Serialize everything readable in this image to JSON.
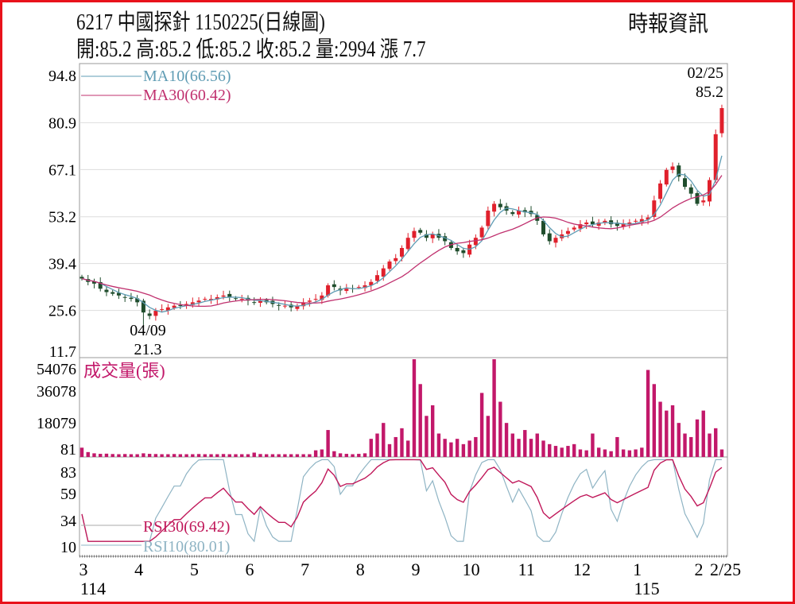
{
  "header": {
    "title": "6217  中國探針 1150225(日線圖)",
    "ohlc": "開:85.2 高:85.2 低:85.2 收:85.2 量:2994 漲 7.7",
    "brand": "時報資訊"
  },
  "colors": {
    "frame": "#e8121b",
    "up": "#e0202c",
    "down": "#1f4d2c",
    "ma10": "#5f9cb4",
    "ma30": "#c0306e",
    "volume": "#c2186a",
    "rsi10": "#8fb4c4",
    "rsi30": "#c0185a"
  },
  "chart_data": [
    {
      "type": "candlestick",
      "title": "price",
      "y_ticks": [
        "94.8",
        "80.9",
        "67.1",
        "53.2",
        "39.4",
        "25.6",
        "11.7"
      ],
      "ylim": [
        11.7,
        94.8
      ],
      "legend": [
        {
          "name": "MA10(66.56)",
          "period": 10
        },
        {
          "name": "MA30(60.42)",
          "period": 30
        }
      ],
      "annotations": [
        {
          "date": "04/09",
          "value": "21.3",
          "index": 10
        },
        {
          "date": "02/25",
          "value": "85.2",
          "index": 104
        }
      ],
      "close": [
        35,
        34,
        33.5,
        32,
        31,
        30.5,
        30,
        29.5,
        29,
        28,
        25,
        24,
        25.5,
        26,
        26.5,
        27,
        27,
        27.5,
        28,
        28.5,
        29,
        29,
        29.5,
        30,
        29.5,
        29,
        29,
        28.5,
        28,
        28.5,
        28,
        27.5,
        27,
        27,
        26.5,
        27,
        28,
        28.5,
        29,
        30,
        33,
        32.5,
        31.5,
        32,
        32,
        32.5,
        33,
        34,
        36,
        38,
        40,
        41,
        44,
        47,
        49,
        48.5,
        47,
        48,
        47,
        46,
        44,
        43,
        42.5,
        45,
        47,
        50,
        55,
        57,
        56,
        55,
        54,
        55,
        54.5,
        54,
        52,
        48,
        46,
        47,
        48,
        49,
        50,
        51,
        51.5,
        51,
        51.5,
        52,
        51,
        50.5,
        51,
        51.5,
        52,
        52.5,
        53,
        58,
        63,
        67,
        68,
        65,
        62,
        60,
        57,
        58,
        64,
        77.5,
        85.2
      ],
      "low_point": 21.3
    },
    {
      "type": "bar",
      "title": "成交量(張)",
      "y_ticks": [
        "54076",
        "36078",
        "18079",
        "81"
      ],
      "ylim": [
        81,
        54076
      ],
      "values": [
        4000,
        1500,
        800,
        500,
        600,
        400,
        300,
        400,
        300,
        300,
        800,
        500,
        400,
        300,
        300,
        400,
        300,
        300,
        300,
        400,
        300,
        300,
        300,
        400,
        300,
        300,
        300,
        300,
        1200,
        400,
        300,
        300,
        300,
        300,
        300,
        300,
        300,
        300,
        2500,
        3000,
        14000,
        2000,
        800,
        500,
        300,
        500,
        800,
        9000,
        12000,
        18000,
        6000,
        10000,
        15000,
        8000,
        54076,
        40000,
        22000,
        28000,
        12000,
        9000,
        7000,
        9000,
        6000,
        8000,
        10000,
        35000,
        22000,
        54076,
        30000,
        18000,
        12000,
        9000,
        14000,
        9000,
        12000,
        8000,
        6000,
        5000,
        4000,
        5000,
        6000,
        3000,
        2500,
        12000,
        4000,
        3000,
        2000,
        10000,
        3000,
        2500,
        3000,
        4000,
        48000,
        40000,
        30000,
        25000,
        28000,
        18000,
        12000,
        10000,
        20000,
        25000,
        12000,
        15000,
        2994
      ]
    },
    {
      "type": "line",
      "title": "RSI",
      "y_ticks": [
        "83",
        "59",
        "34",
        "10"
      ],
      "ylim": [
        10,
        83
      ],
      "legend": [
        {
          "name": "RSI30(69.42)"
        },
        {
          "name": "RSI10(80.01)"
        }
      ]
    }
  ],
  "x_axis": {
    "months": [
      {
        "label": "3",
        "index": 0
      },
      {
        "label": "4",
        "index": 9
      },
      {
        "label": "5",
        "index": 18
      },
      {
        "label": "6",
        "index": 27
      },
      {
        "label": "7",
        "index": 36
      },
      {
        "label": "8",
        "index": 45
      },
      {
        "label": "9",
        "index": 54
      },
      {
        "label": "10",
        "index": 63
      },
      {
        "label": "11",
        "index": 72
      },
      {
        "label": "12",
        "index": 81
      },
      {
        "label": "1",
        "index": 90
      },
      {
        "label": "2",
        "index": 100
      }
    ],
    "end_label": "2/25",
    "years": [
      {
        "label": "114",
        "index": 0
      },
      {
        "label": "115",
        "index": 90
      }
    ]
  }
}
